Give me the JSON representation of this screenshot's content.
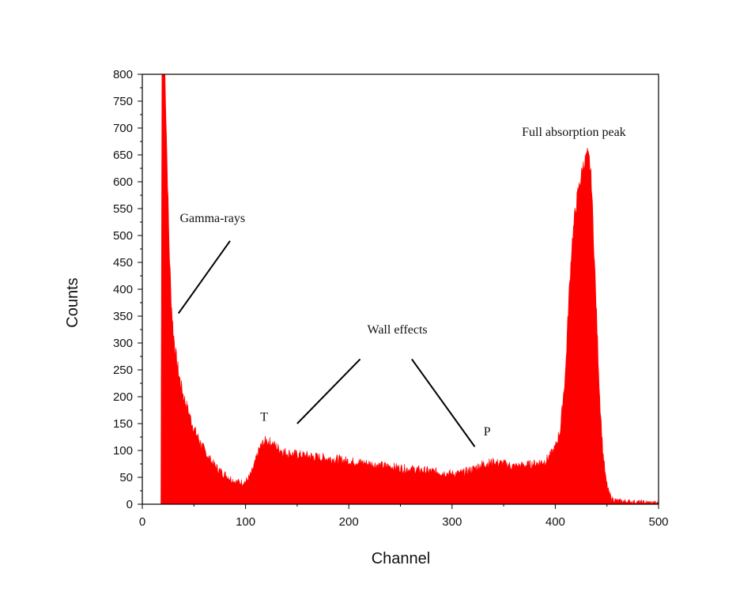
{
  "chart_data": {
    "type": "area",
    "xlabel": "Channel",
    "ylabel": "Counts",
    "xlim": [
      0,
      500
    ],
    "ylim": [
      0,
      800
    ],
    "x_ticks": [
      0,
      100,
      200,
      300,
      400,
      500
    ],
    "y_ticks": [
      0,
      50,
      100,
      150,
      200,
      250,
      300,
      350,
      400,
      450,
      500,
      550,
      600,
      650,
      700,
      750,
      800
    ],
    "grid": false,
    "fill_color": "#ff0000",
    "series": [
      {
        "x": [
          18,
          19,
          20,
          22,
          24,
          26,
          28,
          30,
          33,
          36,
          40,
          45,
          50,
          55,
          60,
          65,
          70,
          75,
          80,
          85,
          90,
          95,
          100,
          103,
          106,
          109,
          112,
          115,
          118,
          120,
          125,
          130,
          135,
          140,
          150,
          160,
          170,
          180,
          190,
          200,
          210,
          220,
          230,
          240,
          250,
          260,
          270,
          280,
          290,
          300,
          310,
          320,
          330,
          340,
          350,
          360,
          370,
          380,
          390,
          395,
          400,
          405,
          410,
          413,
          416,
          419,
          422,
          425,
          427,
          429,
          431,
          433,
          435,
          437,
          440,
          443,
          446,
          449,
          452,
          455,
          460,
          470,
          480,
          490,
          500
        ],
        "y": [
          0,
          800,
          800,
          800,
          640,
          480,
          380,
          320,
          270,
          235,
          200,
          170,
          140,
          120,
          100,
          85,
          72,
          62,
          55,
          48,
          42,
          40,
          42,
          48,
          58,
          75,
          95,
          108,
          115,
          118,
          114,
          106,
          100,
          95,
          92,
          90,
          87,
          85,
          83,
          80,
          78,
          75,
          72,
          70,
          67,
          65,
          63,
          61,
          59,
          56,
          58,
          65,
          75,
          78,
          75,
          70,
          72,
          75,
          80,
          90,
          105,
          140,
          250,
          380,
          480,
          540,
          580,
          610,
          630,
          640,
          650,
          640,
          600,
          500,
          350,
          200,
          100,
          45,
          20,
          10,
          6,
          5,
          4,
          3,
          2
        ]
      }
    ],
    "annotations": [
      {
        "text": "Gamma-rays",
        "x": 68,
        "y": 525,
        "arrows": [
          [
            85,
            490,
            35,
            355
          ]
        ]
      },
      {
        "text": "T",
        "x": 118,
        "y": 155,
        "arrows": []
      },
      {
        "text": "Wall effects",
        "x": 247,
        "y": 318,
        "arrows": [
          [
            211,
            270,
            150,
            150
          ],
          [
            261,
            270,
            322,
            107
          ]
        ]
      },
      {
        "text": "P",
        "x": 334,
        "y": 128,
        "arrows": []
      },
      {
        "text": "Full absorption peak",
        "x": 418,
        "y": 685,
        "arrows": []
      }
    ]
  }
}
